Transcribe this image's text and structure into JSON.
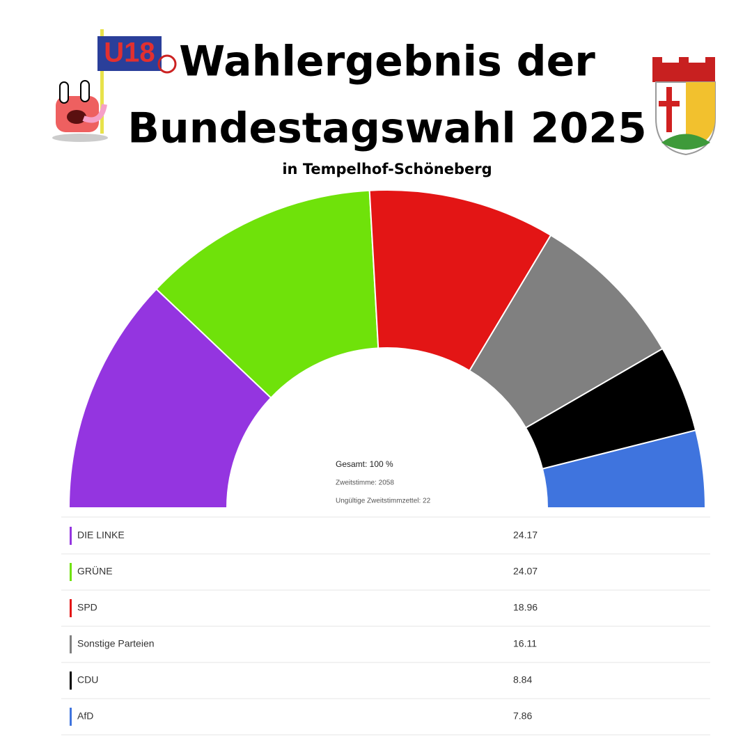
{
  "chart_data": {
    "type": "half-donut",
    "logo_text": "U18",
    "title": [
      "Wahlergebnis der",
      "Bundestagswahl 2025"
    ],
    "subtitle": "in Tempelhof-Schöneberg",
    "center_texts": [
      "Gesamt: 100 %",
      "Zweitstimme: 2058",
      "Ungültige Zweitstimmzettel: 22"
    ],
    "categories": [
      "DIE LINKE",
      "GRÜNE",
      "SPD",
      "Sonstige Parteien",
      "CDU",
      "AfD"
    ],
    "values": [
      24.17,
      24.07,
      18.96,
      16.11,
      8.84,
      7.86
    ],
    "colors": [
      "#9435e0",
      "#6fe20a",
      "#e31515",
      "#808080",
      "#000000",
      "#3f74de"
    ]
  }
}
